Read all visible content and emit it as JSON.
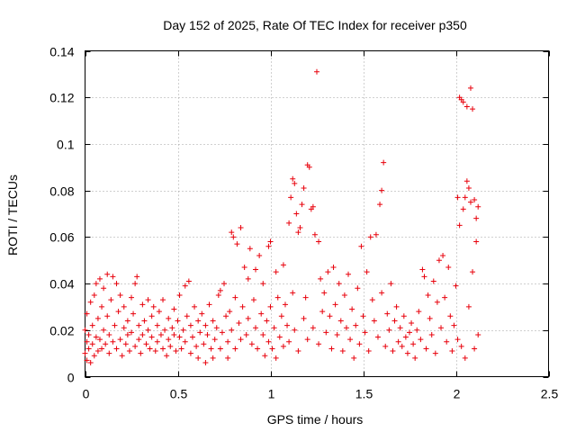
{
  "chart_data": {
    "type": "scatter",
    "title": "Day 152 of 2025, Rate Of TEC Index for receiver p350",
    "xlabel": "GPS time / hours",
    "ylabel": "ROTI / TECUs",
    "xlim": [
      0,
      2.5
    ],
    "ylim": [
      0,
      0.14
    ],
    "xticks": [
      0,
      0.5,
      1,
      1.5,
      2,
      2.5
    ],
    "xtick_labels": [
      "0",
      "0.5",
      "1",
      "1.5",
      "2",
      "2.5"
    ],
    "yticks": [
      0,
      0.02,
      0.04,
      0.06,
      0.08,
      0.1,
      0.12,
      0.14
    ],
    "ytick_labels": [
      "0",
      "0.02",
      "0.04",
      "0.06",
      "0.08",
      "0.1",
      "0.12",
      "0.14"
    ],
    "grid": true,
    "marker": "+",
    "color": "#e8000b",
    "series": [
      {
        "name": "ROTI",
        "points": [
          [
            0.0,
            0.01
          ],
          [
            0.0,
            0.02
          ],
          [
            0.01,
            0.007
          ],
          [
            0.01,
            0.015
          ],
          [
            0.01,
            0.027
          ],
          [
            0.02,
            0.012
          ],
          [
            0.02,
            0.018
          ],
          [
            0.03,
            0.006
          ],
          [
            0.03,
            0.032
          ],
          [
            0.04,
            0.014
          ],
          [
            0.04,
            0.022
          ],
          [
            0.05,
            0.009
          ],
          [
            0.05,
            0.035
          ],
          [
            0.06,
            0.017
          ],
          [
            0.06,
            0.04
          ],
          [
            0.07,
            0.011
          ],
          [
            0.07,
            0.025
          ],
          [
            0.08,
            0.042
          ],
          [
            0.08,
            0.016
          ],
          [
            0.09,
            0.03
          ],
          [
            0.09,
            0.012
          ],
          [
            0.1,
            0.02
          ],
          [
            0.1,
            0.038
          ],
          [
            0.11,
            0.014
          ],
          [
            0.12,
            0.026
          ],
          [
            0.12,
            0.044
          ],
          [
            0.13,
            0.01
          ],
          [
            0.13,
            0.018
          ],
          [
            0.14,
            0.033
          ],
          [
            0.15,
            0.043
          ],
          [
            0.15,
            0.015
          ],
          [
            0.16,
            0.022
          ],
          [
            0.17,
            0.04
          ],
          [
            0.17,
            0.012
          ],
          [
            0.18,
            0.028
          ],
          [
            0.19,
            0.016
          ],
          [
            0.19,
            0.035
          ],
          [
            0.2,
            0.009
          ],
          [
            0.21,
            0.021
          ],
          [
            0.21,
            0.03
          ],
          [
            0.22,
            0.014
          ],
          [
            0.23,
            0.024
          ],
          [
            0.23,
            0.018
          ],
          [
            0.24,
            0.011
          ],
          [
            0.25,
            0.034
          ],
          [
            0.25,
            0.019
          ],
          [
            0.26,
            0.027
          ],
          [
            0.27,
            0.013
          ],
          [
            0.27,
            0.04
          ],
          [
            0.28,
            0.043
          ],
          [
            0.29,
            0.016
          ],
          [
            0.29,
            0.022
          ],
          [
            0.3,
            0.01
          ],
          [
            0.31,
            0.031
          ],
          [
            0.31,
            0.018
          ],
          [
            0.32,
            0.024
          ],
          [
            0.33,
            0.014
          ],
          [
            0.34,
            0.033
          ],
          [
            0.34,
            0.02
          ],
          [
            0.35,
            0.012
          ],
          [
            0.36,
            0.026
          ],
          [
            0.36,
            0.017
          ],
          [
            0.37,
            0.03
          ],
          [
            0.38,
            0.011
          ],
          [
            0.39,
            0.022
          ],
          [
            0.39,
            0.015
          ],
          [
            0.4,
            0.028
          ],
          [
            0.41,
            0.018
          ],
          [
            0.42,
            0.012
          ],
          [
            0.42,
            0.033
          ],
          [
            0.43,
            0.02
          ],
          [
            0.44,
            0.009
          ],
          [
            0.45,
            0.025
          ],
          [
            0.45,
            0.016
          ],
          [
            0.46,
            0.013
          ],
          [
            0.47,
            0.021
          ],
          [
            0.48,
            0.029
          ],
          [
            0.48,
            0.018
          ],
          [
            0.49,
            0.011
          ],
          [
            0.5,
            0.024
          ],
          [
            0.51,
            0.017
          ],
          [
            0.51,
            0.035
          ],
          [
            0.52,
            0.012
          ],
          [
            0.53,
            0.02
          ],
          [
            0.54,
            0.039
          ],
          [
            0.54,
            0.015
          ],
          [
            0.55,
            0.026
          ],
          [
            0.56,
            0.041
          ],
          [
            0.57,
            0.01
          ],
          [
            0.57,
            0.022
          ],
          [
            0.58,
            0.017
          ],
          [
            0.59,
            0.03
          ],
          [
            0.6,
            0.013
          ],
          [
            0.61,
            0.024
          ],
          [
            0.61,
            0.008
          ],
          [
            0.62,
            0.019
          ],
          [
            0.63,
            0.027
          ],
          [
            0.64,
            0.014
          ],
          [
            0.65,
            0.022
          ],
          [
            0.65,
            0.006
          ],
          [
            0.66,
            0.018
          ],
          [
            0.67,
            0.031
          ],
          [
            0.68,
            0.012
          ],
          [
            0.69,
            0.024
          ],
          [
            0.69,
            0.008
          ],
          [
            0.7,
            0.016
          ],
          [
            0.71,
            0.021
          ],
          [
            0.72,
            0.035
          ],
          [
            0.73,
            0.037
          ],
          [
            0.73,
            0.012
          ],
          [
            0.74,
            0.019
          ],
          [
            0.75,
            0.04
          ],
          [
            0.76,
            0.026
          ],
          [
            0.77,
            0.008
          ],
          [
            0.77,
            0.015
          ],
          [
            0.78,
            0.028
          ],
          [
            0.79,
            0.062
          ],
          [
            0.79,
            0.02
          ],
          [
            0.8,
            0.06
          ],
          [
            0.81,
            0.012
          ],
          [
            0.81,
            0.034
          ],
          [
            0.82,
            0.057
          ],
          [
            0.83,
            0.023
          ],
          [
            0.84,
            0.064
          ],
          [
            0.84,
            0.016
          ],
          [
            0.85,
            0.03
          ],
          [
            0.86,
            0.047
          ],
          [
            0.87,
            0.018
          ],
          [
            0.88,
            0.042
          ],
          [
            0.88,
            0.025
          ],
          [
            0.89,
            0.055
          ],
          [
            0.9,
            0.014
          ],
          [
            0.91,
            0.033
          ],
          [
            0.92,
            0.046
          ],
          [
            0.92,
            0.021
          ],
          [
            0.93,
            0.012
          ],
          [
            0.94,
            0.052
          ],
          [
            0.95,
            0.027
          ],
          [
            0.96,
            0.018
          ],
          [
            0.96,
            0.04
          ],
          [
            0.97,
            0.009
          ],
          [
            0.98,
            0.024
          ],
          [
            0.99,
            0.056
          ],
          [
            0.99,
            0.015
          ],
          [
            1.0,
            0.058
          ],
          [
            1.0,
            0.03
          ],
          [
            1.01,
            0.012
          ],
          [
            1.02,
            0.021
          ],
          [
            1.03,
            0.045
          ],
          [
            1.03,
            0.008
          ],
          [
            1.04,
            0.034
          ],
          [
            1.05,
            0.017
          ],
          [
            1.06,
            0.026
          ],
          [
            1.07,
            0.048
          ],
          [
            1.07,
            0.013
          ],
          [
            1.08,
            0.031
          ],
          [
            1.09,
            0.022
          ],
          [
            1.1,
            0.066
          ],
          [
            1.1,
            0.015
          ],
          [
            1.11,
            0.077
          ],
          [
            1.12,
            0.085
          ],
          [
            1.12,
            0.036
          ],
          [
            1.13,
            0.083
          ],
          [
            1.13,
            0.02
          ],
          [
            1.14,
            0.07
          ],
          [
            1.15,
            0.062
          ],
          [
            1.15,
            0.011
          ],
          [
            1.16,
            0.064
          ],
          [
            1.17,
            0.074
          ],
          [
            1.18,
            0.081
          ],
          [
            1.18,
            0.025
          ],
          [
            1.19,
            0.034
          ],
          [
            1.2,
            0.091
          ],
          [
            1.2,
            0.016
          ],
          [
            1.21,
            0.09
          ],
          [
            1.22,
            0.072
          ],
          [
            1.23,
            0.073
          ],
          [
            1.23,
            0.021
          ],
          [
            1.24,
            0.061
          ],
          [
            1.25,
            0.131
          ],
          [
            1.26,
            0.058
          ],
          [
            1.26,
            0.014
          ],
          [
            1.27,
            0.042
          ],
          [
            1.28,
            0.028
          ],
          [
            1.29,
            0.036
          ],
          [
            1.3,
            0.019
          ],
          [
            1.31,
            0.045
          ],
          [
            1.32,
            0.026
          ],
          [
            1.33,
            0.012
          ],
          [
            1.34,
            0.047
          ],
          [
            1.35,
            0.031
          ],
          [
            1.36,
            0.018
          ],
          [
            1.37,
            0.04
          ],
          [
            1.38,
            0.024
          ],
          [
            1.39,
            0.011
          ],
          [
            1.4,
            0.035
          ],
          [
            1.41,
            0.021
          ],
          [
            1.42,
            0.044
          ],
          [
            1.43,
            0.016
          ],
          [
            1.44,
            0.029
          ],
          [
            1.45,
            0.008
          ],
          [
            1.46,
            0.022
          ],
          [
            1.47,
            0.038
          ],
          [
            1.48,
            0.014
          ],
          [
            1.49,
            0.056
          ],
          [
            1.5,
            0.026
          ],
          [
            1.51,
            0.019
          ],
          [
            1.52,
            0.045
          ],
          [
            1.53,
            0.011
          ],
          [
            1.54,
            0.06
          ],
          [
            1.55,
            0.033
          ],
          [
            1.56,
            0.024
          ],
          [
            1.57,
            0.061
          ],
          [
            1.58,
            0.017
          ],
          [
            1.59,
            0.074
          ],
          [
            1.6,
            0.08
          ],
          [
            1.6,
            0.036
          ],
          [
            1.61,
            0.092
          ],
          [
            1.62,
            0.013
          ],
          [
            1.63,
            0.027
          ],
          [
            1.64,
            0.02
          ],
          [
            1.65,
            0.04
          ],
          [
            1.66,
            0.011
          ],
          [
            1.67,
            0.024
          ],
          [
            1.68,
            0.03
          ],
          [
            1.69,
            0.015
          ],
          [
            1.7,
            0.021
          ],
          [
            1.71,
            0.013
          ],
          [
            1.72,
            0.026
          ],
          [
            1.73,
            0.017
          ],
          [
            1.74,
            0.01
          ],
          [
            1.75,
            0.019
          ],
          [
            1.76,
            0.023
          ],
          [
            1.77,
            0.014
          ],
          [
            1.78,
            0.008
          ],
          [
            1.79,
            0.02
          ],
          [
            1.8,
            0.028
          ],
          [
            1.81,
            0.016
          ],
          [
            1.82,
            0.046
          ],
          [
            1.83,
            0.043
          ],
          [
            1.84,
            0.012
          ],
          [
            1.85,
            0.035
          ],
          [
            1.86,
            0.025
          ],
          [
            1.87,
            0.018
          ],
          [
            1.88,
            0.041
          ],
          [
            1.89,
            0.01
          ],
          [
            1.9,
            0.032
          ],
          [
            1.91,
            0.05
          ],
          [
            1.92,
            0.021
          ],
          [
            1.93,
            0.052
          ],
          [
            1.94,
            0.034
          ],
          [
            1.95,
            0.015
          ],
          [
            1.96,
            0.047
          ],
          [
            1.97,
            0.026
          ],
          [
            1.98,
            0.011
          ],
          [
            1.99,
            0.022
          ],
          [
            2.0,
            0.039
          ],
          [
            2.01,
            0.077
          ],
          [
            2.01,
            0.016
          ],
          [
            2.02,
            0.12
          ],
          [
            2.02,
            0.065
          ],
          [
            2.03,
            0.119
          ],
          [
            2.03,
            0.013
          ],
          [
            2.04,
            0.072
          ],
          [
            2.04,
            0.118
          ],
          [
            2.05,
            0.077
          ],
          [
            2.05,
            0.008
          ],
          [
            2.06,
            0.084
          ],
          [
            2.06,
            0.116
          ],
          [
            2.07,
            0.081
          ],
          [
            2.07,
            0.03
          ],
          [
            2.08,
            0.075
          ],
          [
            2.08,
            0.124
          ],
          [
            2.09,
            0.115
          ],
          [
            2.09,
            0.045
          ],
          [
            2.1,
            0.076
          ],
          [
            2.1,
            0.012
          ],
          [
            2.11,
            0.068
          ],
          [
            2.11,
            0.058
          ],
          [
            2.12,
            0.073
          ],
          [
            2.12,
            0.018
          ]
        ]
      }
    ]
  }
}
